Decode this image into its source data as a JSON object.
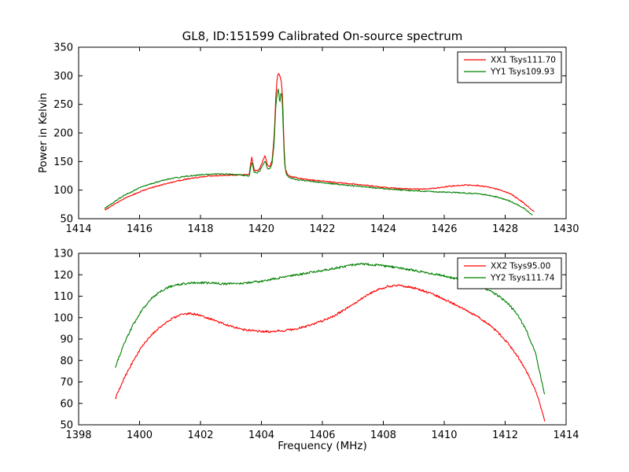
{
  "figure": {
    "background": "#ffffff",
    "text_color": "#000000"
  },
  "chart_data": [
    {
      "type": "line",
      "title": "GL8, ID:151599 Calibrated On-source spectrum",
      "xlabel": "",
      "ylabel": "Power in Kelvin",
      "xlim": [
        1414,
        1430
      ],
      "ylim": [
        50,
        350
      ],
      "xticks": [
        1414,
        1416,
        1418,
        1420,
        1422,
        1424,
        1426,
        1428,
        1430
      ],
      "yticks": [
        50,
        100,
        150,
        200,
        250,
        300,
        350
      ],
      "grid": false,
      "legend_position": "upper right",
      "series": [
        {
          "name": "XX1 Tsys111.70",
          "color": "#ff0000",
          "noise": 1.0,
          "points": [
            [
              1414.85,
              65
            ],
            [
              1415.1,
              73
            ],
            [
              1415.5,
              85
            ],
            [
              1416,
              97
            ],
            [
              1416.5,
              106
            ],
            [
              1417,
              113
            ],
            [
              1417.5,
              119
            ],
            [
              1418,
              123
            ],
            [
              1418.4,
              125
            ],
            [
              1418.8,
              126
            ],
            [
              1419.2,
              126.5
            ],
            [
              1419.5,
              127
            ],
            [
              1419.6,
              128
            ],
            [
              1419.68,
              158
            ],
            [
              1419.76,
              136
            ],
            [
              1419.85,
              133
            ],
            [
              1419.95,
              138
            ],
            [
              1420.05,
              152
            ],
            [
              1420.12,
              161
            ],
            [
              1420.2,
              143
            ],
            [
              1420.28,
              141
            ],
            [
              1420.35,
              152
            ],
            [
              1420.42,
              195
            ],
            [
              1420.47,
              262
            ],
            [
              1420.52,
              298
            ],
            [
              1420.57,
              305
            ],
            [
              1420.62,
              297
            ],
            [
              1420.66,
              288
            ],
            [
              1420.7,
              255
            ],
            [
              1420.74,
              180
            ],
            [
              1420.78,
              138
            ],
            [
              1420.85,
              128
            ],
            [
              1420.95,
              124
            ],
            [
              1421.2,
              121
            ],
            [
              1421.6,
              118
            ],
            [
              1422,
              116
            ],
            [
              1422.5,
              113
            ],
            [
              1423,
              111
            ],
            [
              1423.5,
              108
            ],
            [
              1424,
              105
            ],
            [
              1424.5,
              103
            ],
            [
              1425,
              101.5
            ],
            [
              1425.4,
              102
            ],
            [
              1425.8,
              104
            ],
            [
              1426.2,
              107
            ],
            [
              1426.6,
              109
            ],
            [
              1427,
              108.5
            ],
            [
              1427.4,
              106
            ],
            [
              1427.8,
              101
            ],
            [
              1428.2,
              93
            ],
            [
              1428.6,
              78
            ],
            [
              1428.95,
              62
            ]
          ]
        },
        {
          "name": "YY1 Tsys109.93",
          "color": "#008000",
          "noise": 1.0,
          "points": [
            [
              1414.85,
              68
            ],
            [
              1415.1,
              77
            ],
            [
              1415.5,
              91
            ],
            [
              1416,
              104
            ],
            [
              1416.5,
              113
            ],
            [
              1417,
              120
            ],
            [
              1417.5,
              124
            ],
            [
              1418,
              127
            ],
            [
              1418.4,
              128
            ],
            [
              1418.8,
              128
            ],
            [
              1419.2,
              127
            ],
            [
              1419.5,
              125.5
            ],
            [
              1419.6,
              124
            ],
            [
              1419.68,
              150
            ],
            [
              1419.76,
              131
            ],
            [
              1419.85,
              130
            ],
            [
              1419.95,
              134
            ],
            [
              1420.05,
              144
            ],
            [
              1420.12,
              152
            ],
            [
              1420.2,
              138
            ],
            [
              1420.28,
              137
            ],
            [
              1420.35,
              146
            ],
            [
              1420.42,
              185
            ],
            [
              1420.47,
              245
            ],
            [
              1420.52,
              272
            ],
            [
              1420.56,
              278
            ],
            [
              1420.6,
              250
            ],
            [
              1420.64,
              272
            ],
            [
              1420.68,
              262
            ],
            [
              1420.72,
              200
            ],
            [
              1420.76,
              145
            ],
            [
              1420.82,
              127
            ],
            [
              1420.92,
              121
            ],
            [
              1421.2,
              118
            ],
            [
              1421.6,
              115.5
            ],
            [
              1422,
              113
            ],
            [
              1422.5,
              110
            ],
            [
              1423,
              107.5
            ],
            [
              1423.5,
              105
            ],
            [
              1424,
              102.5
            ],
            [
              1424.5,
              100.5
            ],
            [
              1425,
              99
            ],
            [
              1425.5,
              97.5
            ],
            [
              1426,
              96.5
            ],
            [
              1426.5,
              95.5
            ],
            [
              1427,
              94
            ],
            [
              1427.4,
              91.5
            ],
            [
              1427.8,
              87
            ],
            [
              1428.2,
              80
            ],
            [
              1428.6,
              69
            ],
            [
              1428.9,
              56
            ]
          ]
        }
      ]
    },
    {
      "type": "line",
      "title": "",
      "xlabel": "Frequency (MHz)",
      "ylabel": "",
      "xlim": [
        1398,
        1414
      ],
      "ylim": [
        50,
        130
      ],
      "xticks": [
        1398,
        1400,
        1402,
        1404,
        1406,
        1408,
        1410,
        1412,
        1414
      ],
      "yticks": [
        50,
        60,
        70,
        80,
        90,
        100,
        110,
        120,
        130
      ],
      "grid": false,
      "legend_position": "upper right",
      "series": [
        {
          "name": "XX2 Tsys95.00",
          "color": "#ff0000",
          "noise": 0.5,
          "points": [
            [
              1399.2,
              62
            ],
            [
              1399.5,
              72
            ],
            [
              1399.8,
              80
            ],
            [
              1400.1,
              87
            ],
            [
              1400.4,
              92
            ],
            [
              1400.7,
              96
            ],
            [
              1401.0,
              99
            ],
            [
              1401.3,
              101
            ],
            [
              1401.6,
              102
            ],
            [
              1401.9,
              101.5
            ],
            [
              1402.2,
              100
            ],
            [
              1402.5,
              98.5
            ],
            [
              1402.8,
              97
            ],
            [
              1403.1,
              95.5
            ],
            [
              1403.4,
              94.5
            ],
            [
              1403.7,
              94
            ],
            [
              1404.0,
              93.5
            ],
            [
              1404.3,
              93.5
            ],
            [
              1404.6,
              93.8
            ],
            [
              1404.9,
              94.2
            ],
            [
              1405.2,
              95
            ],
            [
              1405.5,
              96
            ],
            [
              1405.8,
              97.5
            ],
            [
              1406.1,
              99
            ],
            [
              1406.4,
              101
            ],
            [
              1406.7,
              103.5
            ],
            [
              1407.0,
              106
            ],
            [
              1407.3,
              109
            ],
            [
              1407.6,
              111.5
            ],
            [
              1407.9,
              113.5
            ],
            [
              1408.2,
              114.7
            ],
            [
              1408.5,
              115
            ],
            [
              1408.8,
              114.5
            ],
            [
              1409.1,
              113.5
            ],
            [
              1409.4,
              112
            ],
            [
              1409.7,
              110.5
            ],
            [
              1410.0,
              108.5
            ],
            [
              1410.3,
              106.5
            ],
            [
              1410.6,
              104.5
            ],
            [
              1410.9,
              102
            ],
            [
              1411.2,
              99.5
            ],
            [
              1411.5,
              96.5
            ],
            [
              1411.8,
              92.5
            ],
            [
              1412.1,
              88
            ],
            [
              1412.4,
              82
            ],
            [
              1412.7,
              75
            ],
            [
              1413.0,
              66
            ],
            [
              1413.3,
              52
            ]
          ]
        },
        {
          "name": "YY2 Tsys111.74",
          "color": "#008000",
          "noise": 0.5,
          "points": [
            [
              1399.2,
              77
            ],
            [
              1399.5,
              88
            ],
            [
              1399.8,
              97
            ],
            [
              1400.1,
              104
            ],
            [
              1400.4,
              109
            ],
            [
              1400.7,
              112.5
            ],
            [
              1401.0,
              114.5
            ],
            [
              1401.3,
              115.5
            ],
            [
              1401.6,
              116
            ],
            [
              1401.9,
              116.3
            ],
            [
              1402.2,
              116.2
            ],
            [
              1402.5,
              116
            ],
            [
              1402.8,
              115.8
            ],
            [
              1403.1,
              115.8
            ],
            [
              1403.4,
              116
            ],
            [
              1403.7,
              116.5
            ],
            [
              1404.0,
              117
            ],
            [
              1404.3,
              117.8
            ],
            [
              1404.6,
              118.5
            ],
            [
              1404.9,
              119.3
            ],
            [
              1405.2,
              120
            ],
            [
              1405.5,
              120.8
            ],
            [
              1405.8,
              121.5
            ],
            [
              1406.1,
              122.3
            ],
            [
              1406.4,
              123
            ],
            [
              1406.7,
              123.8
            ],
            [
              1407.0,
              124.5
            ],
            [
              1407.3,
              125
            ],
            [
              1407.6,
              124.8
            ],
            [
              1407.9,
              124.3
            ],
            [
              1408.2,
              123.8
            ],
            [
              1408.5,
              123.2
            ],
            [
              1408.8,
              122.5
            ],
            [
              1409.1,
              121.8
            ],
            [
              1409.4,
              121
            ],
            [
              1409.7,
              120.3
            ],
            [
              1410.0,
              119.5
            ],
            [
              1410.3,
              118.5
            ],
            [
              1410.6,
              117.5
            ],
            [
              1410.9,
              116.2
            ],
            [
              1411.2,
              114.5
            ],
            [
              1411.5,
              112.5
            ],
            [
              1411.8,
              110
            ],
            [
              1412.1,
              106.5
            ],
            [
              1412.4,
              101.5
            ],
            [
              1412.7,
              94
            ],
            [
              1413.0,
              83
            ],
            [
              1413.3,
              64
            ]
          ]
        }
      ]
    }
  ]
}
